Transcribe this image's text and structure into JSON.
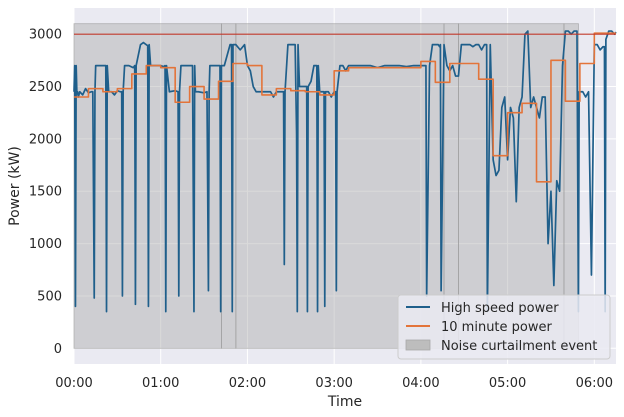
{
  "chart_data": {
    "type": "line",
    "title": "",
    "xlabel": "Time",
    "ylabel": "Power (kW)",
    "xlim": [
      0,
      375
    ],
    "ylim": [
      -150,
      3250
    ],
    "x_ticks": [
      {
        "value": 0,
        "label": "00:00"
      },
      {
        "value": 60,
        "label": "01:00"
      },
      {
        "value": 120,
        "label": "02:00"
      },
      {
        "value": 180,
        "label": "03:00"
      },
      {
        "value": 240,
        "label": "04:00"
      },
      {
        "value": 300,
        "label": "05:00"
      },
      {
        "value": 360,
        "label": "06:00"
      }
    ],
    "y_ticks": [
      0,
      500,
      1000,
      1500,
      2000,
      2500,
      3000
    ],
    "grid": true,
    "legend_position": "bottom-right",
    "reference_line": {
      "y": 3000,
      "color": "#c0392b"
    },
    "shaded_regions": [
      {
        "x0": 0,
        "x1": 102,
        "y0": 0,
        "y1": 3100
      },
      {
        "x0": 102,
        "x1": 112,
        "y0": 0,
        "y1": 3100
      },
      {
        "x0": 112,
        "x1": 256,
        "y0": 0,
        "y1": 3100
      },
      {
        "x0": 256,
        "x1": 266,
        "y0": 0,
        "y1": 3100
      },
      {
        "x0": 266,
        "x1": 339,
        "y0": 0,
        "y1": 3100
      },
      {
        "x0": 339,
        "x1": 349,
        "y0": 0,
        "y1": 3100
      }
    ],
    "series": [
      {
        "name": "High speed power",
        "color": "#1f5f8b",
        "x": [
          0,
          0.5,
          1,
          1.5,
          2,
          2.5,
          3,
          4,
          6,
          8,
          10,
          12,
          13,
          14,
          14.5,
          15,
          18,
          20,
          22,
          22.5,
          23,
          24,
          26,
          28,
          30,
          32,
          33,
          33.5,
          34,
          35,
          38,
          41,
          42,
          42.5,
          43,
          46,
          48,
          50,
          51,
          51.5,
          52,
          53,
          56,
          60,
          62,
          63,
          63.5,
          64,
          66,
          70,
          72,
          72.5,
          73,
          74,
          76,
          80,
          82,
          83,
          83.5,
          84,
          86,
          90,
          92,
          93,
          93.5,
          94,
          96,
          100,
          101,
          101.5,
          102,
          103,
          104,
          108,
          109,
          109.5,
          110,
          112,
          115,
          118,
          120,
          122,
          124,
          126,
          128,
          130,
          132,
          134,
          136,
          138,
          140,
          142,
          144,
          145,
          145.5,
          146,
          148,
          150,
          152,
          153,
          154,
          154.5,
          155,
          156,
          158,
          160,
          161,
          161.5,
          162,
          164,
          166,
          168,
          168.5,
          169,
          170,
          172,
          173,
          173.5,
          174,
          176,
          178,
          180,
          181,
          181.5,
          182,
          184,
          186,
          188,
          190,
          195,
          200,
          205,
          210,
          215,
          220,
          225,
          230,
          235,
          240,
          242,
          243,
          243.5,
          244,
          246,
          248,
          250,
          252,
          253,
          253.5,
          254,
          256,
          258,
          260,
          262,
          264,
          266,
          268,
          270,
          272,
          274,
          276,
          278,
          280,
          282,
          284,
          285,
          285.5,
          286,
          288,
          290,
          292,
          294,
          296,
          298,
          300,
          302,
          304,
          306,
          308,
          310,
          312,
          314,
          316,
          318,
          320,
          322,
          324,
          326,
          328,
          330,
          332,
          334,
          336,
          338,
          340,
          342,
          344,
          346,
          348,
          349,
          349.5,
          350,
          352,
          354,
          356,
          358,
          360,
          362,
          364,
          366,
          367,
          367.5,
          368,
          370,
          372,
          374,
          375
        ],
        "y": [
          2450,
          2700,
          400,
          2700,
          2430,
          2450,
          2400,
          2450,
          2420,
          2480,
          2440,
          2450,
          2450,
          480,
          2450,
          2700,
          2700,
          2700,
          2700,
          350,
          2700,
          2450,
          2450,
          2420,
          2460,
          2450,
          2450,
          500,
          2450,
          2700,
          2700,
          2680,
          2700,
          420,
          2700,
          2900,
          2920,
          2900,
          2890,
          400,
          2900,
          2700,
          2700,
          2700,
          2690,
          2700,
          350,
          2700,
          2450,
          2460,
          2450,
          500,
          2450,
          2700,
          2700,
          2700,
          2700,
          350,
          2700,
          2450,
          2450,
          2440,
          2450,
          550,
          2450,
          2700,
          2700,
          2700,
          2700,
          350,
          2700,
          2700,
          2700,
          2900,
          2900,
          350,
          2900,
          2900,
          2850,
          2900,
          2700,
          2650,
          2500,
          2450,
          2450,
          2450,
          2450,
          2450,
          2450,
          2400,
          2450,
          2450,
          2450,
          2450,
          800,
          2450,
          2900,
          2900,
          2900,
          2900,
          2050,
          350,
          2900,
          2500,
          2500,
          2500,
          2500,
          350,
          2500,
          2550,
          2700,
          2700,
          350,
          2700,
          2450,
          2450,
          2450,
          400,
          2450,
          2450,
          2400,
          2450,
          2450,
          550,
          2450,
          2700,
          2700,
          2650,
          2700,
          2700,
          2700,
          2700,
          2680,
          2700,
          2700,
          2700,
          2690,
          2700,
          2700,
          2700,
          2700,
          2700,
          500,
          2700,
          2900,
          2900,
          2900,
          2880,
          2900,
          550,
          2900,
          2700,
          2650,
          2700,
          2600,
          2600,
          2900,
          2900,
          2900,
          2900,
          2880,
          2900,
          2900,
          2850,
          2900,
          2900,
          2900,
          350,
          2900,
          1800,
          1650,
          1700,
          2300,
          2400,
          1800,
          2300,
          2200,
          1400,
          2300,
          2400,
          3000,
          3030,
          2300,
          2400,
          2300,
          2200,
          2400,
          2400,
          1000,
          1500,
          600,
          1600,
          1500,
          2700,
          3030,
          3030,
          3000,
          3030,
          3030,
          350,
          2450,
          2450,
          2450,
          2400,
          2450,
          700,
          2900,
          2900,
          2850,
          2880,
          2880,
          350,
          2950,
          3030,
          3030,
          3000,
          3020
        ]
      },
      {
        "name": "10 minute power",
        "color": "#e3743a",
        "x": [
          0,
          10,
          10,
          20,
          20,
          30,
          30,
          40,
          40,
          50,
          50,
          60,
          60,
          70,
          70,
          80,
          80,
          90,
          90,
          100,
          100,
          110,
          110,
          120,
          120,
          130,
          130,
          140,
          140,
          150,
          150,
          160,
          160,
          170,
          170,
          180,
          180,
          190,
          190,
          200,
          200,
          210,
          210,
          220,
          220,
          230,
          230,
          240,
          240,
          250,
          250,
          260,
          260,
          270,
          270,
          280,
          280,
          290,
          290,
          300,
          300,
          310,
          310,
          320,
          320,
          330,
          330,
          340,
          340,
          350,
          350,
          360,
          360,
          370,
          370,
          375
        ],
        "y": [
          2400,
          2400,
          2480,
          2480,
          2450,
          2450,
          2480,
          2480,
          2620,
          2620,
          2700,
          2700,
          2680,
          2680,
          2350,
          2350,
          2500,
          2500,
          2380,
          2380,
          2550,
          2550,
          2720,
          2720,
          2700,
          2700,
          2420,
          2420,
          2480,
          2480,
          2460,
          2460,
          2450,
          2450,
          2420,
          2420,
          2650,
          2650,
          2680,
          2680,
          2680,
          2680,
          2680,
          2680,
          2680,
          2680,
          2680,
          2680,
          2740,
          2740,
          2540,
          2540,
          2720,
          2720,
          2720,
          2720,
          2570,
          2570,
          1840,
          1840,
          2250,
          2250,
          2340,
          2340,
          1590,
          1590,
          2750,
          2750,
          2360,
          2360,
          2720,
          2720,
          3010,
          3010,
          3010,
          3010
        ]
      }
    ],
    "legend": [
      {
        "label": "High speed power",
        "kind": "line",
        "color": "#1f5f8b"
      },
      {
        "label": "10 minute power",
        "kind": "line",
        "color": "#e3743a"
      },
      {
        "label": "Noise curtailment event",
        "kind": "patch",
        "color": "#bdbdbd"
      }
    ]
  }
}
